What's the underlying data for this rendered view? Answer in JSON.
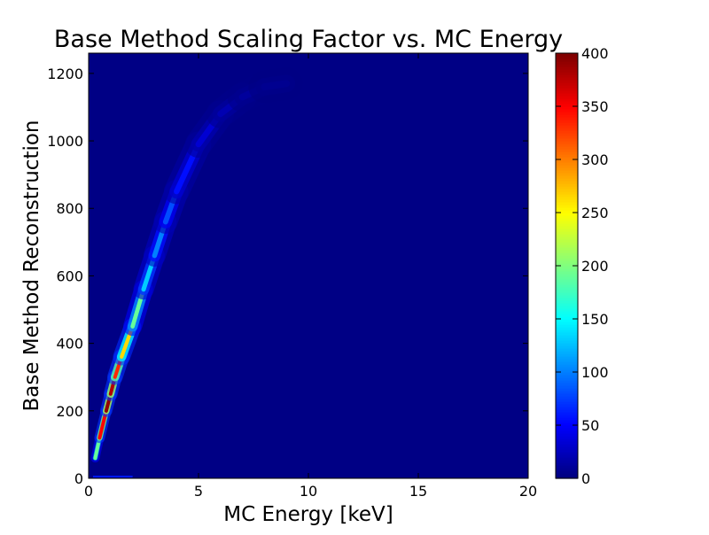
{
  "chart_data": {
    "type": "heatmap",
    "title": "Base Method Scaling Factor vs. MC Energy",
    "xlabel": "MC Energy [keV]",
    "ylabel": "Base Method Reconstruction",
    "xlim": [
      0,
      20
    ],
    "ylim": [
      0,
      1260
    ],
    "xticks": [
      0,
      5,
      10,
      15,
      20
    ],
    "yticks": [
      0,
      200,
      400,
      600,
      800,
      1000,
      1200
    ],
    "colorbar": {
      "min": 0,
      "max": 400,
      "ticks": [
        0,
        50,
        100,
        150,
        200,
        250,
        300,
        350,
        400
      ],
      "colormap": "jet"
    },
    "ridge": {
      "x": [
        0.3,
        0.5,
        0.8,
        1.0,
        1.2,
        1.5,
        2.0,
        2.5,
        3.0,
        3.5,
        4.0,
        5.0,
        6.0,
        7.0,
        8.0,
        9.0
      ],
      "y": [
        60,
        120,
        200,
        250,
        300,
        360,
        450,
        560,
        660,
        760,
        850,
        990,
        1080,
        1130,
        1160,
        1170
      ],
      "peak_count": [
        80,
        300,
        395,
        390,
        370,
        300,
        230,
        150,
        110,
        90,
        70,
        40,
        25,
        14,
        8,
        5
      ]
    },
    "background_count": 2
  }
}
